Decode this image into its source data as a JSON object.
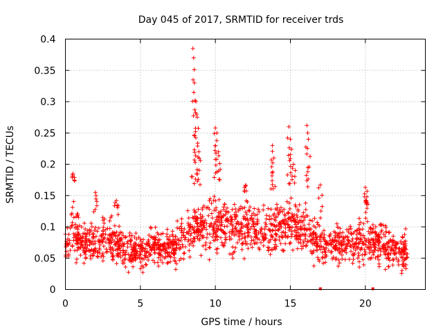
{
  "chart_data": {
    "type": "scatter",
    "title": "Day 045 of 2017, SRMTID for receiver trds",
    "xlabel": "GPS time / hours",
    "ylabel": "SRMTID / TECUs",
    "xlim": [
      0,
      24
    ],
    "ylim": [
      0,
      0.4
    ],
    "xticks": [
      0,
      5,
      10,
      15,
      20
    ],
    "xtick_labels": [
      "0",
      "5",
      "10",
      "15",
      "20"
    ],
    "yticks": [
      0,
      0.05,
      0.1,
      0.15,
      0.2,
      0.25,
      0.3,
      0.35,
      0.4
    ],
    "ytick_labels": [
      "0",
      "0.05",
      "0.1",
      "0.15",
      "0.2",
      "0.25",
      "0.3",
      "0.35",
      "0.4"
    ],
    "grid": true,
    "marker": "+",
    "color": "#ff0000",
    "data_range_hours": [
      0,
      22.8
    ],
    "baseline_envelope": [
      {
        "x": 0.0,
        "low": 0.03,
        "high": 0.1
      },
      {
        "x": 0.5,
        "low": 0.04,
        "high": 0.18
      },
      {
        "x": 1.0,
        "low": 0.03,
        "high": 0.12
      },
      {
        "x": 2.0,
        "low": 0.03,
        "high": 0.12
      },
      {
        "x": 3.0,
        "low": 0.03,
        "high": 0.14
      },
      {
        "x": 4.0,
        "low": 0.02,
        "high": 0.1
      },
      {
        "x": 5.0,
        "low": 0.02,
        "high": 0.1
      },
      {
        "x": 6.0,
        "low": 0.03,
        "high": 0.11
      },
      {
        "x": 7.0,
        "low": 0.03,
        "high": 0.11
      },
      {
        "x": 8.0,
        "low": 0.03,
        "high": 0.13
      },
      {
        "x": 9.0,
        "low": 0.04,
        "high": 0.16
      },
      {
        "x": 10.0,
        "low": 0.04,
        "high": 0.17
      },
      {
        "x": 11.0,
        "low": 0.04,
        "high": 0.15
      },
      {
        "x": 12.0,
        "low": 0.04,
        "high": 0.16
      },
      {
        "x": 13.0,
        "low": 0.04,
        "high": 0.14
      },
      {
        "x": 14.0,
        "low": 0.04,
        "high": 0.15
      },
      {
        "x": 15.0,
        "low": 0.04,
        "high": 0.16
      },
      {
        "x": 16.0,
        "low": 0.04,
        "high": 0.16
      },
      {
        "x": 17.0,
        "low": 0.03,
        "high": 0.11
      },
      {
        "x": 18.0,
        "low": 0.03,
        "high": 0.11
      },
      {
        "x": 19.0,
        "low": 0.03,
        "high": 0.12
      },
      {
        "x": 20.0,
        "low": 0.03,
        "high": 0.13
      },
      {
        "x": 21.0,
        "low": 0.03,
        "high": 0.12
      },
      {
        "x": 22.0,
        "low": 0.02,
        "high": 0.1
      },
      {
        "x": 22.8,
        "low": 0.02,
        "high": 0.11
      }
    ],
    "spikes": [
      {
        "x": 0.5,
        "peak": 0.185
      },
      {
        "x": 2.0,
        "peak": 0.155
      },
      {
        "x": 3.4,
        "peak": 0.142
      },
      {
        "x": 8.5,
        "peak": 0.385
      },
      {
        "x": 8.55,
        "peak": 0.37
      },
      {
        "x": 8.6,
        "peak": 0.33
      },
      {
        "x": 8.7,
        "peak": 0.3
      },
      {
        "x": 8.75,
        "peak": 0.28
      },
      {
        "x": 8.9,
        "peak": 0.22
      },
      {
        "x": 10.0,
        "peak": 0.258
      },
      {
        "x": 10.1,
        "peak": 0.25
      },
      {
        "x": 10.2,
        "peak": 0.22
      },
      {
        "x": 12.0,
        "peak": 0.165
      },
      {
        "x": 13.8,
        "peak": 0.23
      },
      {
        "x": 13.9,
        "peak": 0.21
      },
      {
        "x": 14.9,
        "peak": 0.26
      },
      {
        "x": 15.0,
        "peak": 0.24
      },
      {
        "x": 15.2,
        "peak": 0.2
      },
      {
        "x": 16.1,
        "peak": 0.262
      },
      {
        "x": 16.2,
        "peak": 0.24
      },
      {
        "x": 17.0,
        "peak": 0.167
      },
      {
        "x": 20.0,
        "peak": 0.163
      },
      {
        "x": 20.1,
        "peak": 0.148
      }
    ],
    "data_gaps_hours": [
      17.0,
      20.5
    ]
  }
}
